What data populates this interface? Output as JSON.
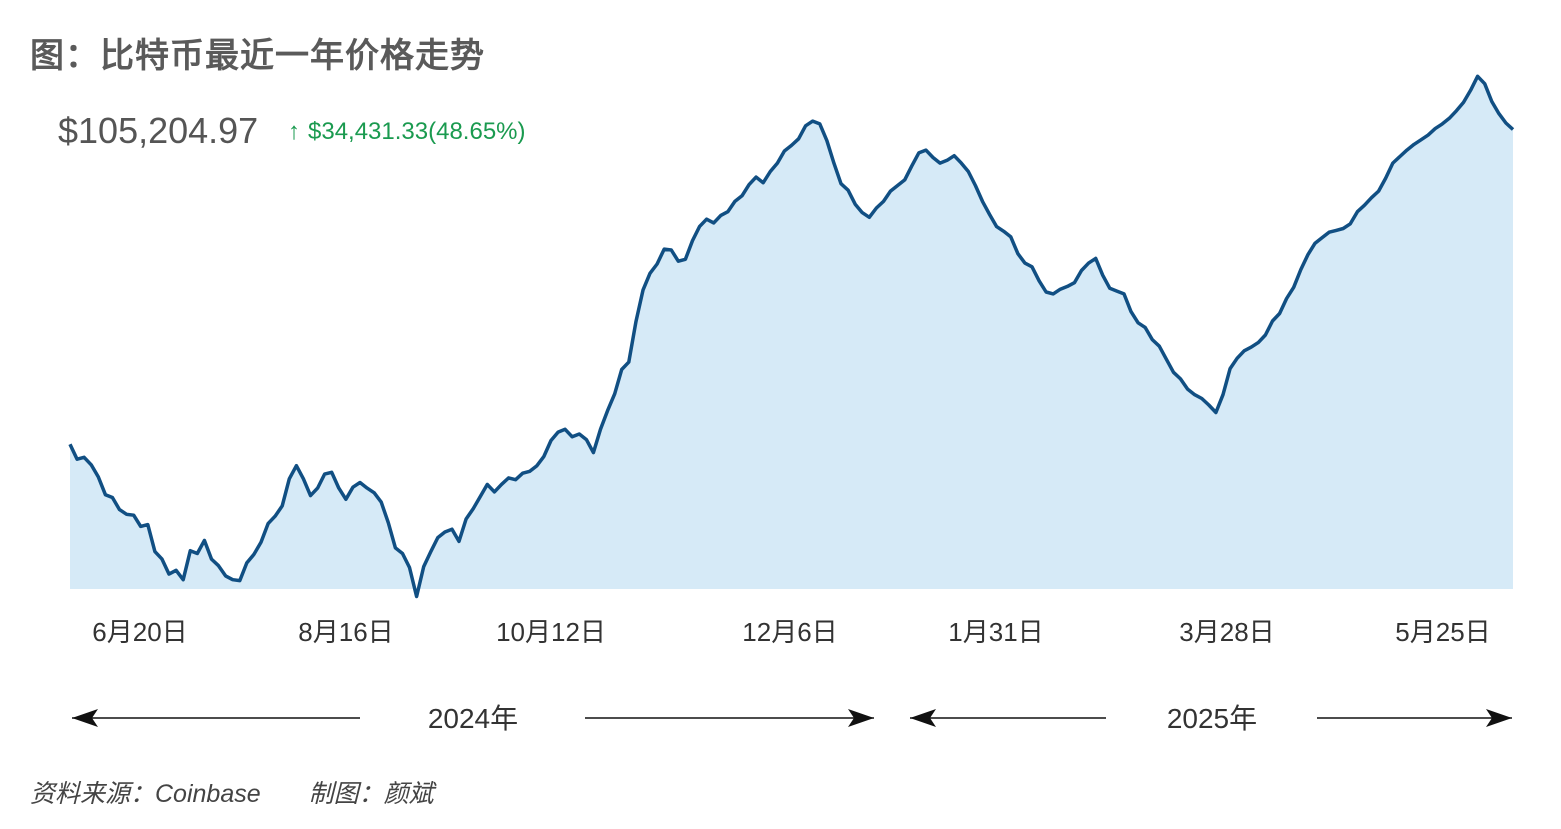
{
  "title": "图：比特币最近一年价格走势",
  "price": {
    "current": "$105,204.97",
    "arrow": "↑",
    "change": "$34,431.33(48.65%)"
  },
  "colors": {
    "line": "#114f83",
    "fill": "#d6eaf7",
    "change": "#1a9a4f"
  },
  "chart_data": {
    "type": "area",
    "x_ticks": [
      "6月20日",
      "8月16日",
      "10月12日",
      "12月6日",
      "1月31日",
      "3月28日",
      "5月25日"
    ],
    "year_spans": [
      "2024年",
      "2025年"
    ],
    "ylim": [
      56000,
      112000
    ],
    "grid": false,
    "values": [
      71500,
      69900,
      70100,
      69300,
      68000,
      66100,
      65800,
      64500,
      64000,
      63900,
      62700,
      62900,
      60000,
      59200,
      57600,
      58000,
      57000,
      60100,
      59800,
      61200,
      59200,
      58500,
      57400,
      57000,
      56900,
      58800,
      59700,
      61000,
      63000,
      63800,
      64900,
      67800,
      69200,
      67800,
      66000,
      66800,
      68300,
      68500,
      66800,
      65600,
      66900,
      67400,
      66800,
      66300,
      65300,
      63100,
      60400,
      59800,
      58300,
      55200,
      58400,
      60000,
      61500,
      62100,
      62400,
      61100,
      63500,
      64600,
      65900,
      67200,
      66400,
      67200,
      67900,
      67700,
      68400,
      68600,
      69200,
      70200,
      71900,
      72800,
      73100,
      72300,
      72600,
      72000,
      70600,
      73100,
      75100,
      76900,
      79500,
      80300,
      84600,
      88000,
      89800,
      90800,
      92400,
      92300,
      91100,
      91300,
      93300,
      94800,
      95600,
      95200,
      96000,
      96400,
      97500,
      98100,
      99300,
      100100,
      99500,
      100700,
      101600,
      102900,
      103500,
      104200,
      105600,
      106100,
      105800,
      104000,
      101600,
      99400,
      98700,
      97200,
      96300,
      95800,
      96800,
      97500,
      98600,
      99200,
      99800,
      101300,
      102700,
      103000,
      102200,
      101600,
      101900,
      102400,
      101600,
      100700,
      99200,
      97500,
      96100,
      94800,
      94300,
      93700,
      91900,
      90900,
      90500,
      89000,
      87800,
      87600,
      88100,
      88400,
      88800,
      90100,
      90900,
      91400,
      89600,
      88200,
      87900,
      87600,
      85700,
      84500,
      84000,
      82700,
      82000,
      80600,
      79200,
      78500,
      77400,
      76800,
      76400,
      75700,
      74900,
      76800,
      79600,
      80700,
      81500,
      81900,
      82400,
      83200,
      84700,
      85500,
      87100,
      88300,
      90200,
      91800,
      93000,
      93600,
      94200,
      94400,
      94600,
      95100,
      96400,
      97100,
      97900,
      98600,
      100000,
      101600,
      102300,
      103000,
      103600,
      104100,
      104600,
      105300,
      105800,
      106400,
      107200,
      108100,
      109400,
      110900,
      110100,
      108200,
      106900,
      105900,
      105204.97
    ]
  },
  "footer": {
    "source": "资料来源：Coinbase",
    "author": "制图：颜斌"
  }
}
